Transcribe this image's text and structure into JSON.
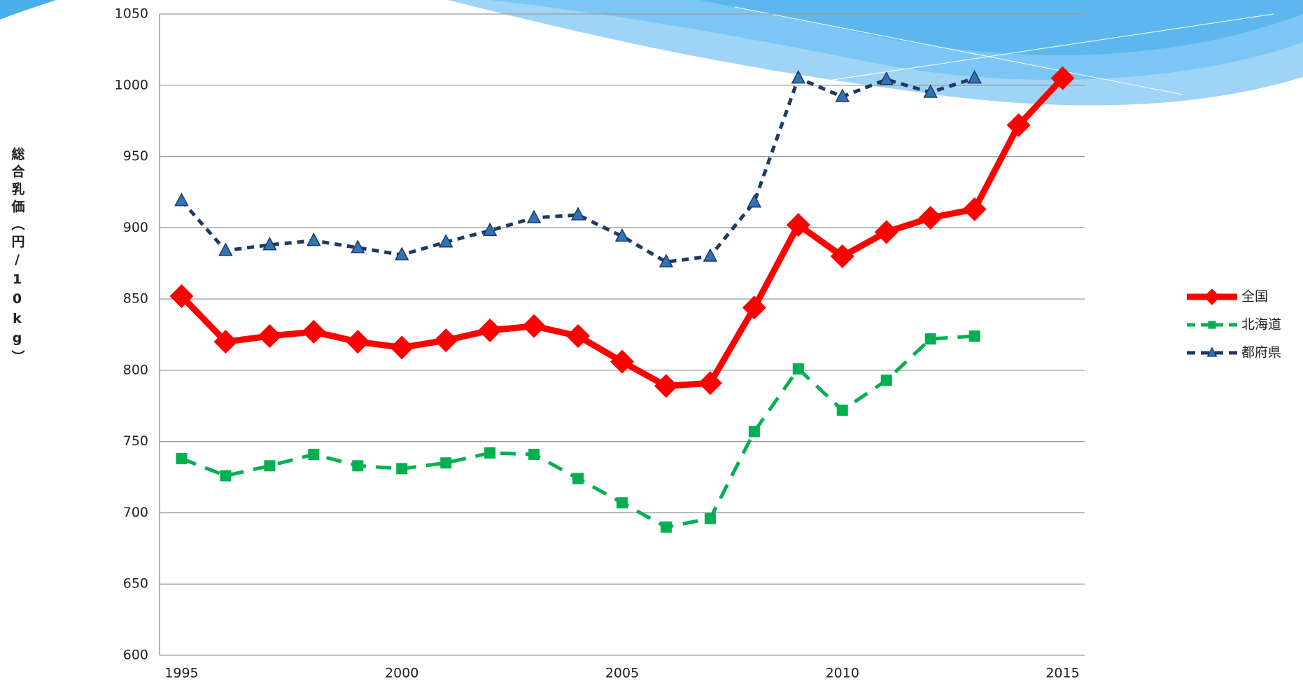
{
  "chart_data": {
    "type": "line",
    "y_label": "総合乳価（円/10kg）",
    "categories": [
      "1995",
      null,
      null,
      null,
      null,
      "2000",
      null,
      null,
      null,
      null,
      "2005",
      null,
      null,
      null,
      null,
      "2010",
      null,
      null,
      null,
      null,
      "2015"
    ],
    "series": [
      {
        "name": "全国",
        "color": "#ff0000",
        "marker": "diamond",
        "dash": "solid",
        "values": [
          852,
          820,
          824,
          827,
          820,
          816,
          821,
          828,
          831,
          824,
          806,
          789,
          791,
          844,
          902,
          880,
          897,
          907,
          913,
          972,
          1005
        ]
      },
      {
        "name": "北海道",
        "color": "#00b050",
        "marker": "square",
        "dash": "long",
        "values": [
          738,
          726,
          733,
          741,
          733,
          731,
          735,
          742,
          741,
          724,
          707,
          690,
          696,
          757,
          801,
          772,
          793,
          822,
          824,
          null,
          null
        ]
      },
      {
        "name": "都府県",
        "color": "#1f3864",
        "marker": "triangle",
        "dash": "short",
        "values": [
          919,
          884,
          888,
          891,
          886,
          881,
          890,
          898,
          907,
          909,
          894,
          876,
          880,
          918,
          1005,
          992,
          1004,
          995,
          1005,
          null,
          null
        ]
      }
    ],
    "ylim": [
      600,
      1050
    ],
    "yticks": [
      600,
      650,
      700,
      750,
      800,
      850,
      900,
      950,
      1000,
      1050
    ],
    "grid": true,
    "legend": "right"
  }
}
